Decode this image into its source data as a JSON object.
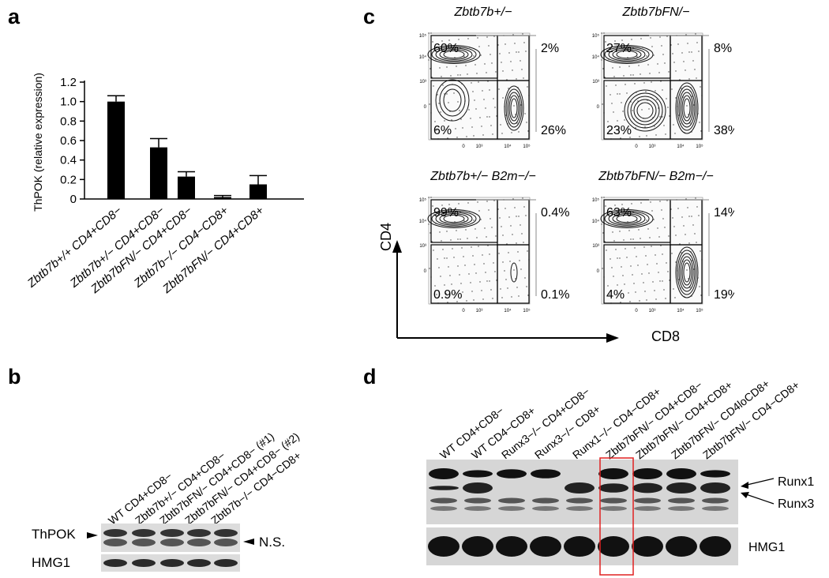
{
  "panels": {
    "a": "a",
    "b": "b",
    "c": "c",
    "d": "d"
  },
  "panel_a": {
    "chart_data": {
      "type": "bar",
      "ylabel": "ThPOK (relative expression)",
      "ylim": [
        0,
        1.2
      ],
      "yticks": [
        "0",
        "0.2",
        "0.4",
        "0.6",
        "0.8",
        "1.0",
        "1.2"
      ],
      "categories": [
        "Zbtb7b+/+ CD4+CD8−",
        "Zbtb7b+/− CD4+CD8−",
        "Zbtb7bFN/− CD4+CD8−",
        "Zbtb7b−/− CD4−CD8+",
        "Zbtb7bFN/− CD4+CD8+"
      ],
      "values": [
        1.0,
        0.53,
        0.23,
        0.02,
        0.15
      ],
      "errors": [
        0.06,
        0.09,
        0.05,
        0.015,
        0.09
      ],
      "grid": false,
      "bar_color": "#000000"
    }
  },
  "panel_b": {
    "lanes": [
      "WT CD4+CD8−",
      "Zbtb7b+/− CD4+CD8−",
      "Zbtb7bFN/− CD4+CD8− (#1)",
      "Zbtb7bFN/− CD4+CD8− (#2)",
      "Zbtb7b−/− CD4−CD8+"
    ],
    "row_labels": {
      "thpok": "ThPOK",
      "hmg1": "HMG1"
    },
    "ns_label": "N.S."
  },
  "panel_c": {
    "ylabel": "CD4",
    "xlabel": "CD8",
    "tick_x": [
      "0",
      "10³",
      "10⁴",
      "10⁵"
    ],
    "tick_y": [
      "10⁵",
      "10⁴",
      "10³",
      "0"
    ],
    "plots": [
      {
        "title": "Zbtb7b+/−",
        "tl": "60%",
        "tr": "2%",
        "bl": "6%",
        "br": "26%"
      },
      {
        "title": "Zbtb7bFN/−",
        "tl": "27%",
        "tr": "8%",
        "bl": "23%",
        "br": "38%"
      },
      {
        "title": "Zbtb7b+/− B2m−/−",
        "tl": "99%",
        "tr": "0.4%",
        "bl": "0.9%",
        "br": "0.1%"
      },
      {
        "title": "Zbtb7bFN/− B2m−/−",
        "tl": "63%",
        "tr": "14%",
        "bl": "4%",
        "br": "19%"
      }
    ]
  },
  "panel_d": {
    "lanes": [
      "WT CD4+CD8−",
      "WT CD4−CD8+",
      "Runx3−/− CD4+CD8−",
      "Runx3−/− CD8+",
      "Runx1−/− CD4−CD8+",
      "Zbtb7bFN/− CD4+CD8−",
      "Zbtb7bFN/− CD4+CD8+",
      "Zbtb7bFN/− CD4loCD8+",
      "Zbtb7bFN/− CD4−CD8+"
    ],
    "row_labels": {
      "runx1": "Runx1",
      "runx3": "Runx3",
      "hmg1": "HMG1"
    }
  }
}
